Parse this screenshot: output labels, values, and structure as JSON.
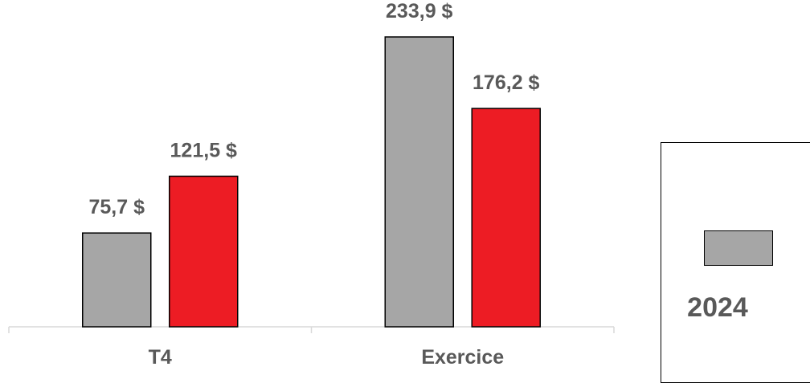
{
  "chart_data": {
    "type": "bar",
    "categories": [
      "T4",
      "Exercice"
    ],
    "series": [
      {
        "name": "2024",
        "values": [
          75.7,
          233.9
        ],
        "labels": [
          "75,7 $",
          "233,9 $"
        ],
        "color": "#a6a6a6"
      },
      {
        "name": "",
        "values": [
          121.5,
          176.2
        ],
        "labels": [
          "121,5 $",
          "176,2 $"
        ],
        "color": "#ed1c24"
      }
    ],
    "title": "",
    "xlabel": "",
    "ylabel": "",
    "ylim": [
      0,
      233.9
    ],
    "grid": false,
    "legend": "right"
  },
  "legend": {
    "items": [
      {
        "label": "2024",
        "color": "#a6a6a6"
      }
    ]
  },
  "colors": {
    "axis": "#d9d9d9",
    "text": "#595959",
    "bar_border": "#000000"
  }
}
